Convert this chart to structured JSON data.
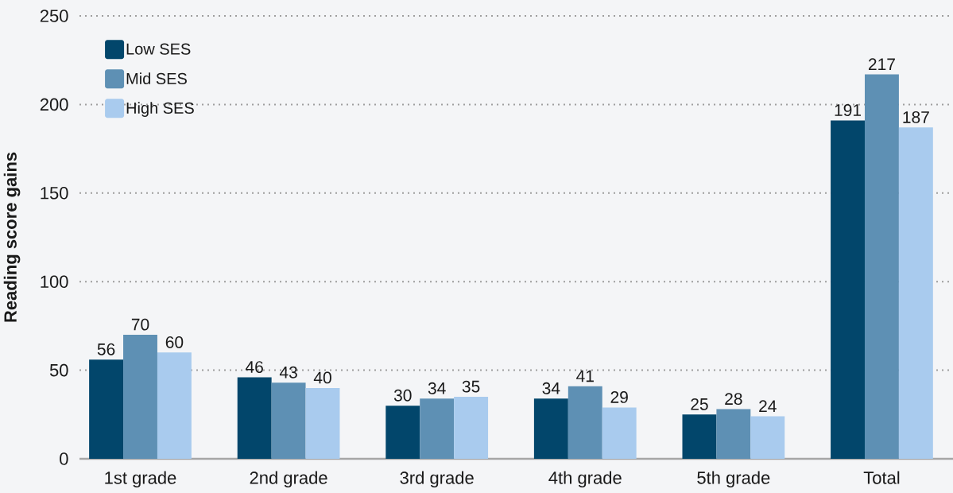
{
  "chart_data": {
    "type": "bar",
    "ylabel": "Reading score gains",
    "categories": [
      "1st grade",
      "2nd grade",
      "3rd grade",
      "4th grade",
      "5th grade",
      "Total"
    ],
    "series": [
      {
        "name": "Low SES",
        "color": "#02466b",
        "values": [
          56,
          46,
          30,
          34,
          25,
          191
        ]
      },
      {
        "name": "Mid SES",
        "color": "#5e90b4",
        "values": [
          70,
          43,
          34,
          41,
          28,
          217
        ]
      },
      {
        "name": "High SES",
        "color": "#a9cbee",
        "values": [
          60,
          40,
          35,
          29,
          24,
          187
        ]
      }
    ],
    "ylim": [
      0,
      250
    ],
    "yticks": [
      0,
      50,
      100,
      150,
      200,
      250
    ],
    "grid": "y",
    "legend": "top left",
    "data_labels": true
  }
}
